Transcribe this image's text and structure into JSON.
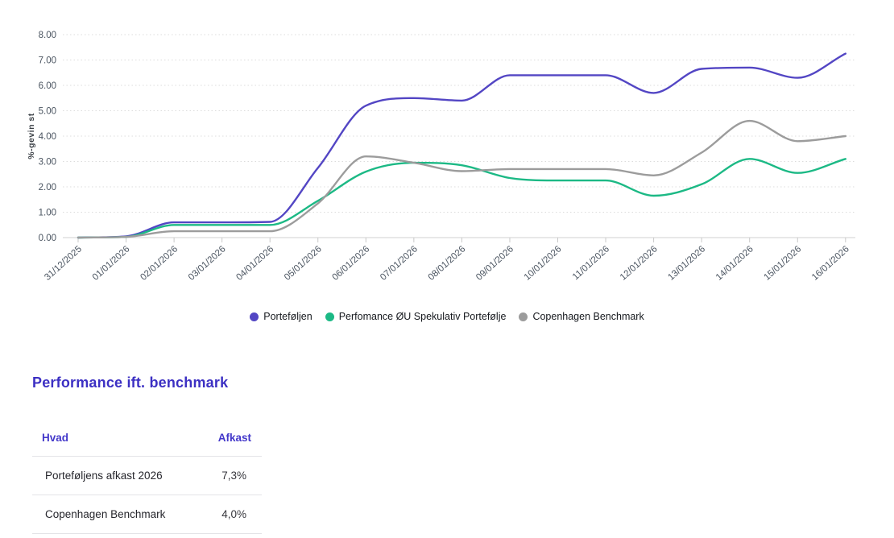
{
  "chart_data": {
    "type": "line",
    "title": "",
    "xlabel": "",
    "ylabel": "%-gevin st",
    "ylim": [
      0,
      8
    ],
    "grid": true,
    "legend_position": "bottom",
    "yticks": [
      "0.00",
      "1.00",
      "2.00",
      "3.00",
      "4.00",
      "5.00",
      "6.00",
      "7.00",
      "8.00"
    ],
    "categories": [
      "31/12/2025",
      "01/01/2026",
      "02/01/2026",
      "03/01/2026",
      "04/01/2026",
      "05/01/2026",
      "06/01/2026",
      "07/01/2026",
      "08/01/2026",
      "09/01/2026",
      "10/01/2026",
      "11/01/2026",
      "12/01/2026",
      "13/01/2026",
      "14/01/2026",
      "15/01/2026",
      "16/01/2026"
    ],
    "series": [
      {
        "name": "Porteføljen",
        "color": "#5346c4",
        "values": [
          0,
          0.05,
          0.6,
          0.6,
          0.62,
          2.75,
          5.2,
          5.5,
          5.4,
          6.4,
          6.4,
          6.4,
          5.7,
          6.65,
          6.7,
          6.3,
          7.25
        ]
      },
      {
        "name": "Perfomance ØU Spekulativ Portefølje",
        "color": "#1cb985",
        "values": [
          0,
          0.03,
          0.5,
          0.5,
          0.5,
          1.45,
          2.6,
          2.95,
          2.85,
          2.35,
          2.25,
          2.25,
          1.65,
          2.1,
          3.1,
          2.55,
          3.1
        ]
      },
      {
        "name": "Copenhagen Benchmark",
        "color": "#9c9c9c",
        "values": [
          0,
          0.03,
          0.25,
          0.25,
          0.25,
          1.35,
          3.2,
          2.95,
          2.62,
          2.7,
          2.7,
          2.7,
          2.45,
          3.35,
          4.6,
          3.8,
          4.0
        ]
      }
    ]
  },
  "section": {
    "title": "Performance ift. benchmark"
  },
  "table": {
    "headers": [
      "Hvad",
      "Afkast"
    ],
    "rows": [
      {
        "label": "Porteføljens afkast 2026",
        "value": "7,3%"
      },
      {
        "label": "Copenhagen Benchmark",
        "value": "4,0%"
      }
    ]
  },
  "colors": {
    "accent": "#4338ca",
    "heading": "#3c30c3",
    "grid_line": "#dcdcdc",
    "axis_line": "#d0d0d0",
    "tick_text": "#4a5460"
  }
}
